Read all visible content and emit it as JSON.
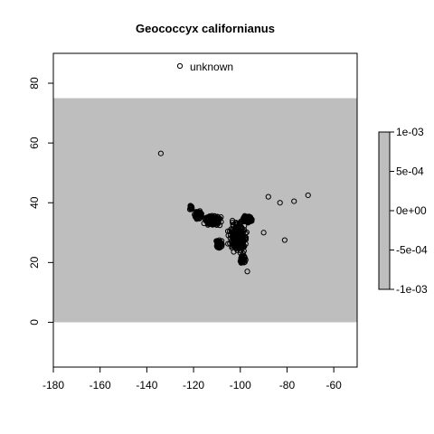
{
  "chart_data": {
    "type": "scatter",
    "title": "Geococcyx californianus",
    "xlabel": "",
    "ylabel": "",
    "xlim": [
      -180,
      -50
    ],
    "ylim": [
      -15,
      90
    ],
    "x_ticks": [
      -180,
      -160,
      -140,
      -120,
      -100,
      -80,
      -60
    ],
    "y_ticks": [
      0,
      20,
      40,
      60,
      80
    ],
    "grid": false,
    "legend": {
      "position": "top-center",
      "entries": [
        "unknown"
      ]
    },
    "background_band": {
      "lat_range": [
        0,
        75
      ],
      "color": "#bebebe"
    },
    "colorbar": {
      "labels": [
        "1e-03",
        "5e-04",
        "0e+00",
        "-5e-04",
        "-1e-03"
      ],
      "range": [
        -0.001,
        0.001
      ],
      "color": "#bebebe"
    },
    "series": [
      {
        "marker": "open-circle",
        "outliers": [
          [
            -134,
            56.5
          ],
          [
            -88,
            42
          ],
          [
            -83,
            40
          ],
          [
            -77,
            40.5
          ],
          [
            -71,
            42.5
          ],
          [
            -81,
            27.5
          ],
          [
            -90,
            30
          ],
          [
            -97,
            17
          ]
        ],
        "clusters": [
          {
            "label_point": [
              -101,
              28.5
            ],
            "spread": [
              6.5,
              8.5
            ],
            "count": 260
          },
          {
            "label_point": [
              -112,
              34
            ],
            "spread": [
              6,
              3
            ],
            "count": 160
          },
          {
            "label_point": [
              -118,
              36
            ],
            "spread": [
              2.5,
              2.5
            ],
            "count": 70
          },
          {
            "label_point": [
              -97,
              34.5
            ],
            "spread": [
              3.5,
              2.5
            ],
            "count": 90
          },
          {
            "label_point": [
              -109,
              26
            ],
            "spread": [
              2.5,
              3
            ],
            "count": 50
          },
          {
            "label_point": [
              -99,
              21
            ],
            "spread": [
              2,
              2.5
            ],
            "count": 50
          },
          {
            "label_point": [
              -121,
              38.5
            ],
            "spread": [
              1.2,
              1.5
            ],
            "count": 20
          }
        ]
      }
    ]
  }
}
